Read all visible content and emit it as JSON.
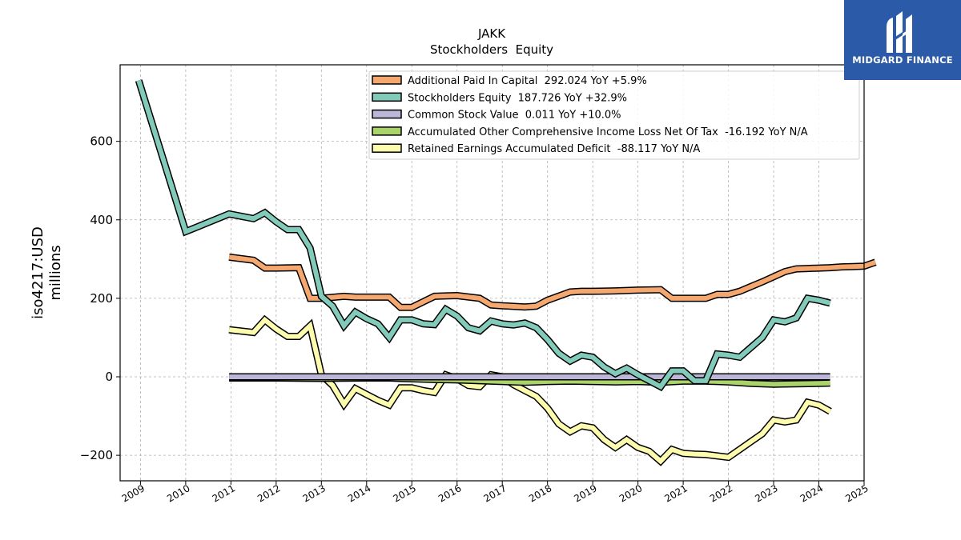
{
  "brand": {
    "name": "MIDGARD FINANCE",
    "color": "#2a5aa8"
  },
  "chart_data": {
    "type": "line",
    "title": "JAKK",
    "subtitle": "Stockholders  Equity",
    "ylabel": "iso4217:USD\nmillions",
    "xlabel": "",
    "xlim": [
      2008.55,
      2025.0
    ],
    "ylim": [
      -265,
      795
    ],
    "x_ticks": [
      "2009",
      "2010",
      "2011",
      "2012",
      "2013",
      "2014",
      "2015",
      "2016",
      "2017",
      "2018",
      "2019",
      "2020",
      "2021",
      "2022",
      "2023",
      "2024",
      "2025"
    ],
    "y_ticks": [
      -200,
      0,
      200,
      400,
      600
    ],
    "y_tick_labels": [
      "−200",
      "0",
      "200",
      "400",
      "600"
    ],
    "grid": true,
    "legend_position": "top-right",
    "series": [
      {
        "name": "Additional Paid In Capital  292.024 YoY +5.9%",
        "color": "#f4a870",
        "points": [
          [
            2010.96,
            305
          ],
          [
            2011.5,
            297
          ],
          [
            2011.75,
            277
          ],
          [
            2012.0,
            277
          ],
          [
            2012.5,
            278
          ],
          [
            2012.75,
            200
          ],
          [
            2013.0,
            200
          ],
          [
            2013.5,
            205
          ],
          [
            2013.75,
            203
          ],
          [
            2014.0,
            203
          ],
          [
            2014.5,
            203
          ],
          [
            2014.75,
            177
          ],
          [
            2015.0,
            177
          ],
          [
            2015.5,
            205
          ],
          [
            2015.75,
            206
          ],
          [
            2016.0,
            207
          ],
          [
            2016.5,
            200
          ],
          [
            2016.75,
            183
          ],
          [
            2017.0,
            181
          ],
          [
            2017.5,
            178
          ],
          [
            2017.75,
            180
          ],
          [
            2018.0,
            195
          ],
          [
            2018.5,
            216
          ],
          [
            2018.75,
            218
          ],
          [
            2019.0,
            218
          ],
          [
            2019.5,
            219
          ],
          [
            2019.75,
            220
          ],
          [
            2020.0,
            221
          ],
          [
            2020.5,
            222
          ],
          [
            2020.75,
            200
          ],
          [
            2021.0,
            200
          ],
          [
            2021.5,
            200
          ],
          [
            2021.75,
            210
          ],
          [
            2022.0,
            210
          ],
          [
            2022.25,
            218
          ],
          [
            2022.5,
            230
          ],
          [
            2022.75,
            242
          ],
          [
            2023.0,
            255
          ],
          [
            2023.25,
            268
          ],
          [
            2023.5,
            275
          ],
          [
            2023.75,
            276
          ],
          [
            2024.0,
            277
          ],
          [
            2024.25,
            278
          ],
          [
            2024.5,
            280
          ],
          [
            2024.75,
            281
          ],
          [
            2025.0,
            282
          ],
          [
            2025.25,
            292
          ]
        ]
      },
      {
        "name": "Stockholders Equity  187.726 YoY +32.9%",
        "color": "#82cbba",
        "points": [
          [
            2008.96,
            755
          ],
          [
            2010.0,
            370
          ],
          [
            2010.96,
            415
          ],
          [
            2011.5,
            403
          ],
          [
            2011.75,
            418
          ],
          [
            2012.0,
            395
          ],
          [
            2012.25,
            375
          ],
          [
            2012.5,
            375
          ],
          [
            2012.75,
            328
          ],
          [
            2013.0,
            205
          ],
          [
            2013.25,
            180
          ],
          [
            2013.5,
            130
          ],
          [
            2013.75,
            165
          ],
          [
            2014.0,
            148
          ],
          [
            2014.25,
            135
          ],
          [
            2014.5,
            100
          ],
          [
            2014.75,
            145
          ],
          [
            2015.0,
            145
          ],
          [
            2015.25,
            135
          ],
          [
            2015.5,
            133
          ],
          [
            2015.75,
            172
          ],
          [
            2016.0,
            155
          ],
          [
            2016.25,
            125
          ],
          [
            2016.5,
            117
          ],
          [
            2016.75,
            142
          ],
          [
            2017.0,
            135
          ],
          [
            2017.25,
            132
          ],
          [
            2017.5,
            137
          ],
          [
            2017.75,
            125
          ],
          [
            2018.0,
            95
          ],
          [
            2018.25,
            60
          ],
          [
            2018.5,
            40
          ],
          [
            2018.75,
            55
          ],
          [
            2019.0,
            50
          ],
          [
            2019.25,
            25
          ],
          [
            2019.5,
            8
          ],
          [
            2019.75,
            22
          ],
          [
            2020.0,
            5
          ],
          [
            2020.25,
            -10
          ],
          [
            2020.5,
            -25
          ],
          [
            2020.75,
            15
          ],
          [
            2021.0,
            15
          ],
          [
            2021.25,
            -10
          ],
          [
            2021.5,
            -10
          ],
          [
            2021.75,
            58
          ],
          [
            2022.0,
            55
          ],
          [
            2022.25,
            50
          ],
          [
            2022.5,
            75
          ],
          [
            2022.75,
            100
          ],
          [
            2023.0,
            145
          ],
          [
            2023.25,
            140
          ],
          [
            2023.5,
            150
          ],
          [
            2023.75,
            200
          ],
          [
            2024.0,
            195
          ],
          [
            2024.25,
            187.7
          ]
        ]
      },
      {
        "name": "Common Stock Value  0.011 YoY +10.0%",
        "color": "#bcb6d8",
        "points": [
          [
            2010.96,
            0
          ],
          [
            2024.25,
            0.011
          ]
        ]
      },
      {
        "name": "Accumulated Other Comprehensive Income Loss Net Of Tax  -16.192 YoY N/A",
        "color": "#aad46b",
        "points": [
          [
            2010.96,
            -3
          ],
          [
            2012.0,
            -3
          ],
          [
            2013.0,
            -4
          ],
          [
            2014.0,
            -3
          ],
          [
            2014.5,
            -3
          ],
          [
            2015.0,
            -5
          ],
          [
            2015.5,
            -7
          ],
          [
            2016.0,
            -8
          ],
          [
            2016.5,
            -10
          ],
          [
            2017.0,
            -12
          ],
          [
            2017.5,
            -14
          ],
          [
            2018.0,
            -12
          ],
          [
            2018.5,
            -11
          ],
          [
            2019.0,
            -12
          ],
          [
            2019.5,
            -13
          ],
          [
            2020.0,
            -12
          ],
          [
            2020.5,
            -14
          ],
          [
            2021.0,
            -11
          ],
          [
            2021.5,
            -11
          ],
          [
            2022.0,
            -13
          ],
          [
            2022.5,
            -17
          ],
          [
            2023.0,
            -19
          ],
          [
            2023.5,
            -18
          ],
          [
            2024.0,
            -17
          ],
          [
            2024.25,
            -16.192
          ]
        ]
      },
      {
        "name": "Retained Earnings Accumulated Deficit  -88.117 YoY N/A",
        "color": "#fdfbae",
        "points": [
          [
            2010.96,
            120
          ],
          [
            2011.5,
            113
          ],
          [
            2011.75,
            145
          ],
          [
            2012.0,
            122
          ],
          [
            2012.25,
            103
          ],
          [
            2012.5,
            103
          ],
          [
            2012.75,
            130
          ],
          [
            2013.0,
            5
          ],
          [
            2013.25,
            -22
          ],
          [
            2013.5,
            -70
          ],
          [
            2013.75,
            -30
          ],
          [
            2014.0,
            -45
          ],
          [
            2014.25,
            -60
          ],
          [
            2014.5,
            -72
          ],
          [
            2014.75,
            -28
          ],
          [
            2015.0,
            -28
          ],
          [
            2015.25,
            -35
          ],
          [
            2015.5,
            -40
          ],
          [
            2015.75,
            5
          ],
          [
            2016.0,
            -5
          ],
          [
            2016.25,
            -22
          ],
          [
            2016.5,
            -25
          ],
          [
            2016.75,
            5
          ],
          [
            2017.0,
            0
          ],
          [
            2017.25,
            -20
          ],
          [
            2017.5,
            -35
          ],
          [
            2017.75,
            -50
          ],
          [
            2018.0,
            -80
          ],
          [
            2018.25,
            -120
          ],
          [
            2018.5,
            -140
          ],
          [
            2018.75,
            -125
          ],
          [
            2019.0,
            -130
          ],
          [
            2019.25,
            -160
          ],
          [
            2019.5,
            -180
          ],
          [
            2019.75,
            -160
          ],
          [
            2020.0,
            -180
          ],
          [
            2020.25,
            -190
          ],
          [
            2020.5,
            -215
          ],
          [
            2020.75,
            -185
          ],
          [
            2021.0,
            -195
          ],
          [
            2021.25,
            -197
          ],
          [
            2021.5,
            -198
          ],
          [
            2022.0,
            -205
          ],
          [
            2022.25,
            -185
          ],
          [
            2022.5,
            -165
          ],
          [
            2022.75,
            -145
          ],
          [
            2023.0,
            -110
          ],
          [
            2023.25,
            -115
          ],
          [
            2023.5,
            -110
          ],
          [
            2023.75,
            -65
          ],
          [
            2024.0,
            -72
          ],
          [
            2024.25,
            -88.117
          ]
        ]
      }
    ]
  }
}
